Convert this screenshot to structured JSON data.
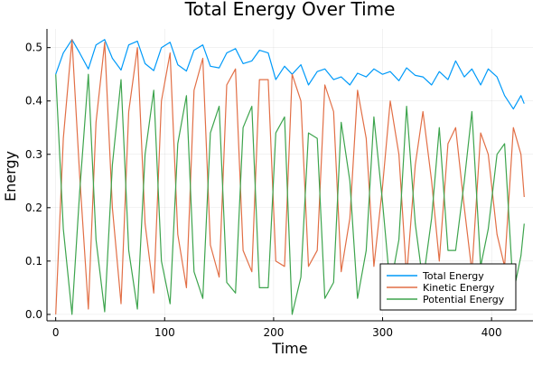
{
  "chart_data": {
    "type": "line",
    "title": "Total Energy Over Time",
    "xlabel": "Time",
    "ylabel": "Energy",
    "xlim": [
      -8,
      438
    ],
    "ylim": [
      -0.012,
      0.535
    ],
    "x_ticks": [
      0,
      100,
      200,
      300,
      400
    ],
    "x_tick_labels": [
      "0",
      "100",
      "200",
      "300",
      "400"
    ],
    "y_ticks": [
      0.0,
      0.1,
      0.2,
      0.3,
      0.4,
      0.5
    ],
    "y_tick_labels": [
      "0.0",
      "0.1",
      "0.2",
      "0.3",
      "0.4",
      "0.5"
    ],
    "grid": true,
    "legend_position": "bottom-right",
    "x": [
      0,
      7,
      15,
      22,
      30,
      37,
      45,
      52,
      60,
      67,
      75,
      82,
      90,
      97,
      105,
      112,
      120,
      127,
      135,
      142,
      150,
      157,
      165,
      172,
      180,
      187,
      195,
      202,
      210,
      217,
      225,
      232,
      240,
      247,
      255,
      262,
      270,
      277,
      285,
      292,
      300,
      307,
      315,
      322,
      330,
      337,
      345,
      352,
      360,
      367,
      375,
      382,
      390,
      397,
      405,
      412,
      420,
      427,
      430
    ],
    "series": [
      {
        "name": "Total Energy",
        "color": "#009af9",
        "values": [
          0.45,
          0.49,
          0.515,
          0.49,
          0.46,
          0.505,
          0.515,
          0.48,
          0.458,
          0.505,
          0.512,
          0.47,
          0.457,
          0.5,
          0.51,
          0.468,
          0.456,
          0.495,
          0.505,
          0.465,
          0.462,
          0.49,
          0.498,
          0.47,
          0.475,
          0.495,
          0.49,
          0.44,
          0.465,
          0.45,
          0.468,
          0.43,
          0.455,
          0.46,
          0.44,
          0.445,
          0.43,
          0.452,
          0.445,
          0.46,
          0.45,
          0.455,
          0.438,
          0.462,
          0.448,
          0.445,
          0.43,
          0.455,
          0.44,
          0.475,
          0.445,
          0.46,
          0.43,
          0.46,
          0.445,
          0.41,
          0.385,
          0.41,
          0.395
        ]
      },
      {
        "name": "Kinetic Energy",
        "color": "#e26f46",
        "values": [
          0.0,
          0.33,
          0.515,
          0.26,
          0.01,
          0.36,
          0.51,
          0.2,
          0.02,
          0.38,
          0.5,
          0.17,
          0.04,
          0.4,
          0.49,
          0.15,
          0.05,
          0.42,
          0.48,
          0.13,
          0.07,
          0.43,
          0.46,
          0.12,
          0.08,
          0.44,
          0.44,
          0.1,
          0.09,
          0.45,
          0.4,
          0.09,
          0.12,
          0.43,
          0.38,
          0.08,
          0.18,
          0.42,
          0.33,
          0.09,
          0.24,
          0.4,
          0.3,
          0.07,
          0.28,
          0.38,
          0.25,
          0.1,
          0.32,
          0.35,
          0.2,
          0.08,
          0.34,
          0.3,
          0.15,
          0.09,
          0.35,
          0.3,
          0.22
        ]
      },
      {
        "name": "Potential Energy",
        "color": "#3da44d",
        "values": [
          0.45,
          0.16,
          0.0,
          0.23,
          0.45,
          0.14,
          0.005,
          0.28,
          0.44,
          0.12,
          0.01,
          0.3,
          0.42,
          0.1,
          0.02,
          0.32,
          0.41,
          0.08,
          0.03,
          0.34,
          0.39,
          0.06,
          0.04,
          0.35,
          0.39,
          0.05,
          0.05,
          0.34,
          0.37,
          0.0,
          0.07,
          0.34,
          0.33,
          0.03,
          0.06,
          0.36,
          0.25,
          0.03,
          0.12,
          0.37,
          0.21,
          0.05,
          0.14,
          0.39,
          0.17,
          0.06,
          0.18,
          0.35,
          0.12,
          0.12,
          0.25,
          0.38,
          0.09,
          0.16,
          0.3,
          0.32,
          0.04,
          0.11,
          0.17
        ]
      }
    ]
  }
}
